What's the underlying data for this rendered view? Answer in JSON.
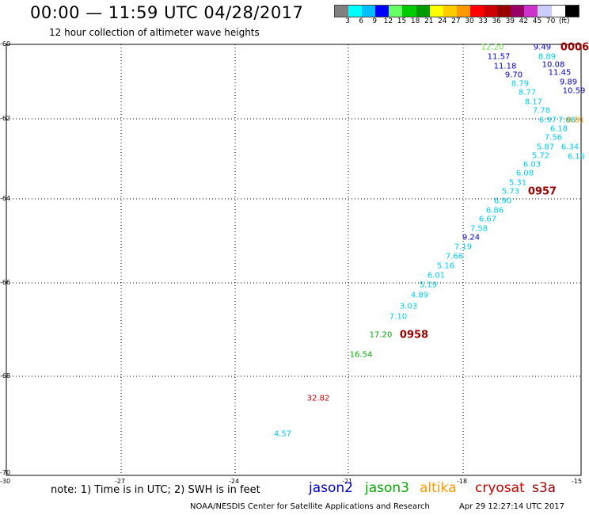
{
  "header": {
    "title": "00:00 — 11:59 UTC 04/28/2017",
    "subtitle": "12 hour collection of altimeter wave heights"
  },
  "colorbar": {
    "swatches": [
      "#808080",
      "#00ffff",
      "#00bfff",
      "#0000ff",
      "#66ff66",
      "#00cc00",
      "#009900",
      "#ffff00",
      "#ffcc00",
      "#ff9900",
      "#ff0000",
      "#cc0000",
      "#990000",
      "#990066",
      "#cc33cc",
      "#ccccff",
      "#ffffff",
      "#000000"
    ],
    "labels": [
      "3",
      "6",
      "9",
      "12",
      "15",
      "18",
      "21",
      "24",
      "27",
      "30",
      "33",
      "36",
      "39",
      "42",
      "45",
      "70",
      "(ft)"
    ]
  },
  "axes": {
    "lon_labels": [
      "-30",
      "-27",
      "-24",
      "-21",
      "-18",
      "-15"
    ],
    "lat_labels": [
      "-60",
      "-62",
      "-64",
      "-66",
      "-68",
      "-70"
    ]
  },
  "wave_heights": [
    {
      "text": "12.20",
      "color": "#66dd44"
    },
    {
      "text": "9.49",
      "color": "#0000cc"
    },
    {
      "text": "11.57",
      "color": "#0000cc"
    },
    {
      "text": "8.89",
      "color": "#00ccee"
    },
    {
      "text": "11.18",
      "color": "#0000cc"
    },
    {
      "text": "10.08",
      "color": "#0000cc"
    },
    {
      "text": "9.70",
      "color": "#0000cc"
    },
    {
      "text": "11.45",
      "color": "#0000cc"
    },
    {
      "text": "9.89",
      "color": "#0000cc"
    },
    {
      "text": "8.79",
      "color": "#00ccee"
    },
    {
      "text": "8.77",
      "color": "#00ccee"
    },
    {
      "text": "10.59",
      "color": "#0000cc"
    },
    {
      "text": "8.17",
      "color": "#00ccee"
    },
    {
      "text": "7.78",
      "color": "#00ccee"
    },
    {
      "text": "6.97",
      "color": "#00ccee"
    },
    {
      "text": "7.06",
      "color": "#00ccee"
    },
    {
      "text": "6.81",
      "color": "#ee9900"
    },
    {
      "text": "6.18",
      "color": "#00ccee"
    },
    {
      "text": "7.56",
      "color": "#00ccee"
    },
    {
      "text": "5.87",
      "color": "#00ccee"
    },
    {
      "text": "6.34",
      "color": "#00ccee"
    },
    {
      "text": "5.72",
      "color": "#00ccee"
    },
    {
      "text": "6.15",
      "color": "#00ccee"
    },
    {
      "text": "6.03",
      "color": "#00ccee"
    },
    {
      "text": "6.08",
      "color": "#00ccee"
    },
    {
      "text": "5.31",
      "color": "#00ccee"
    },
    {
      "text": "5.73",
      "color": "#00ccee"
    },
    {
      "text": "6.90",
      "color": "#00ccee"
    },
    {
      "text": "6.86",
      "color": "#00ccee"
    },
    {
      "text": "6.67",
      "color": "#00ccee"
    },
    {
      "text": "7.58",
      "color": "#00ccee"
    },
    {
      "text": "9.24",
      "color": "#0000cc"
    },
    {
      "text": "7.19",
      "color": "#00ccee"
    },
    {
      "text": "7.66",
      "color": "#00ccee"
    },
    {
      "text": "5.16",
      "color": "#00ccee"
    },
    {
      "text": "6.01",
      "color": "#00ccee"
    },
    {
      "text": "5.19",
      "color": "#00ccee"
    },
    {
      "text": "4.89",
      "color": "#00ccee"
    },
    {
      "text": "3.03",
      "color": "#00ccee"
    },
    {
      "text": "7.10",
      "color": "#00ccee"
    },
    {
      "text": "17.20",
      "color": "#00aa00"
    },
    {
      "text": "16.54",
      "color": "#00aa00"
    },
    {
      "text": "32.82",
      "color": "#cc0000"
    },
    {
      "text": "4.57",
      "color": "#00ccee"
    }
  ],
  "pass_times": [
    {
      "text": "0006",
      "color": "#990000"
    },
    {
      "text": "0957",
      "color": "#990000"
    },
    {
      "text": "0958",
      "color": "#990000"
    }
  ],
  "footer": {
    "note": "note: 1) Time is in UTC; 2) SWH is in feet",
    "legend": [
      {
        "name": "jason2",
        "color": "#0000cc"
      },
      {
        "name": "jason3",
        "color": "#00aa00"
      },
      {
        "name": "altika",
        "color": "#ff9900"
      },
      {
        "name": "cryosat",
        "color": "#cc0000"
      },
      {
        "name": "s3a",
        "color": "#990000"
      }
    ],
    "credit": "NOAA/NESDIS Center for Satellite Applications and Research",
    "timestamp": "Apr 29 12:27:14 UTC 2017"
  }
}
